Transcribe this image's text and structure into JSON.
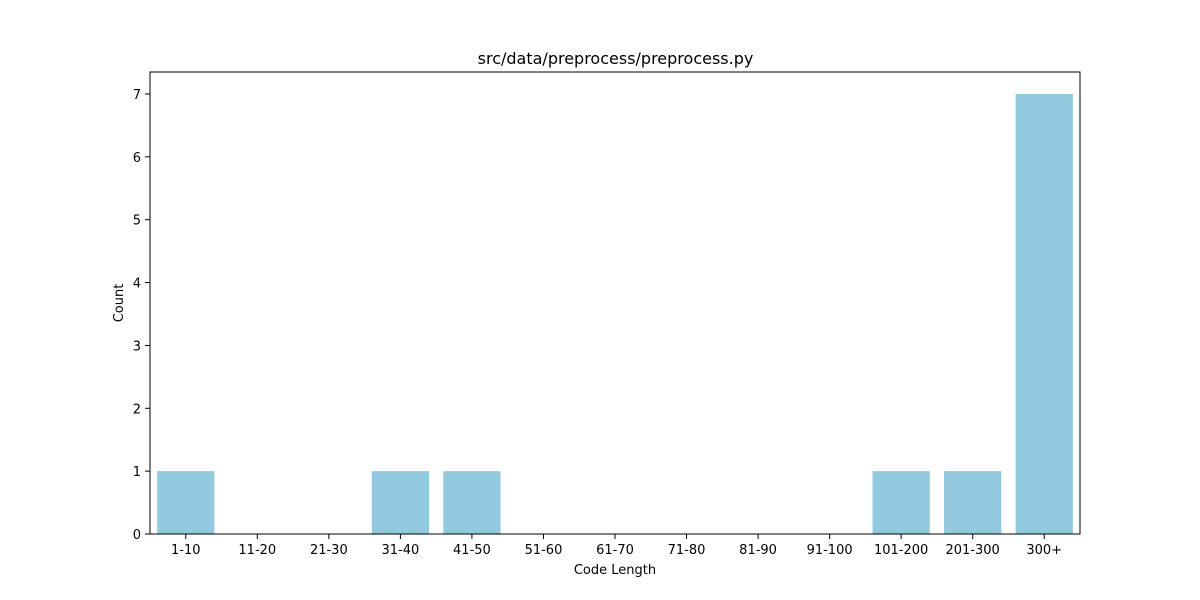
{
  "chart_data": {
    "type": "bar",
    "title": "src/data/preprocess/preprocess.py",
    "xlabel": "Code Length",
    "ylabel": "Count",
    "categories": [
      "1-10",
      "11-20",
      "21-30",
      "31-40",
      "41-50",
      "51-60",
      "61-70",
      "71-80",
      "81-90",
      "91-100",
      "101-200",
      "201-300",
      "300+"
    ],
    "values": [
      1,
      0,
      0,
      1,
      1,
      0,
      0,
      0,
      0,
      0,
      1,
      1,
      7
    ],
    "ylim": [
      0,
      7.35
    ],
    "yticks": [
      "0",
      "1",
      "2",
      "3",
      "4",
      "5",
      "6",
      "7"
    ],
    "grid": false,
    "bar_color": "#92c9df"
  }
}
